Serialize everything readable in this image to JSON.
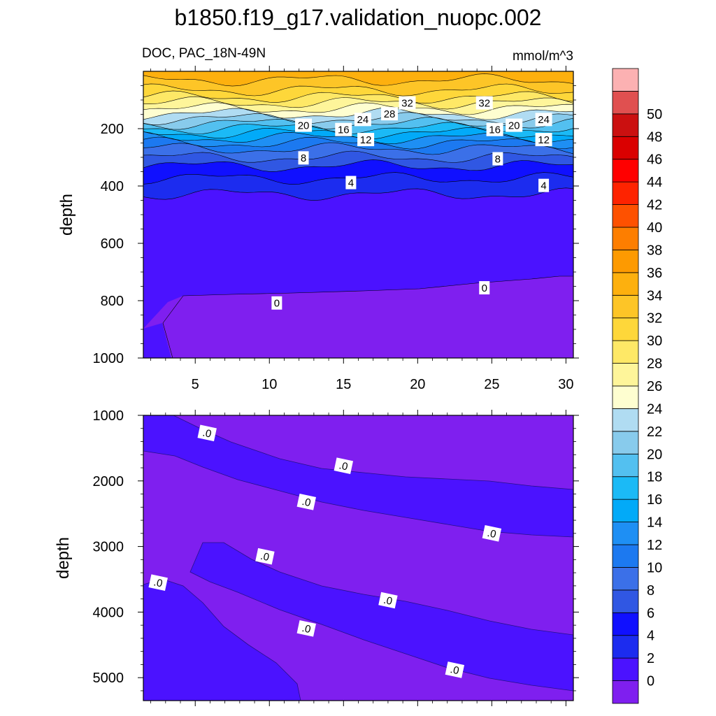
{
  "title": "b1850.f19_g17.validation_nuopc.002",
  "subtitle_left": "DOC, PAC_18N-49N",
  "subtitle_right": "mmol/m^3",
  "chart_data": [
    {
      "type": "contour",
      "panel": "upper",
      "ylabel": "depth",
      "xlabel": "",
      "xlim": [
        1.5,
        30.5
      ],
      "ylim": [
        1000,
        0
      ],
      "x_ticks": [
        5,
        10,
        15,
        20,
        25,
        30
      ],
      "y_ticks": [
        200,
        400,
        600,
        800,
        1000
      ],
      "contour_levels": [
        0,
        2,
        4,
        6,
        8,
        10,
        12,
        14,
        16,
        18,
        20,
        22,
        24,
        26,
        28,
        30,
        32,
        34
      ],
      "depth_profile": {
        "depth": [
          0,
          30,
          50,
          80,
          110,
          140,
          165,
          190,
          215,
          240,
          270,
          300,
          330,
          360,
          400,
          440,
          500,
          650,
          760,
          800,
          1000
        ],
        "value": [
          35,
          34,
          33,
          31,
          28,
          25,
          22,
          19,
          16,
          13,
          10,
          8,
          6,
          4.5,
          3,
          1.6,
          0.6,
          0.2,
          0.05,
          -0.05,
          -0.1
        ]
      },
      "contour_labels": [
        {
          "text": "32",
          "x": 19.3,
          "y": 110
        },
        {
          "text": "32",
          "x": 24.5,
          "y": 110
        },
        {
          "text": "28",
          "x": 18.1,
          "y": 148
        },
        {
          "text": "24",
          "x": 16.3,
          "y": 168
        },
        {
          "text": "24",
          "x": 28.5,
          "y": 168
        },
        {
          "text": "20",
          "x": 12.3,
          "y": 188
        },
        {
          "text": "20",
          "x": 26.5,
          "y": 188
        },
        {
          "text": "16",
          "x": 15.0,
          "y": 203
        },
        {
          "text": "16",
          "x": 25.2,
          "y": 203
        },
        {
          "text": "12",
          "x": 16.5,
          "y": 238
        },
        {
          "text": "12",
          "x": 28.5,
          "y": 238
        },
        {
          "text": "8",
          "x": 12.3,
          "y": 302
        },
        {
          "text": "8",
          "x": 25.4,
          "y": 305
        },
        {
          "text": "4",
          "x": 15.5,
          "y": 388
        },
        {
          "text": "4",
          "x": 28.5,
          "y": 398
        },
        {
          "text": "0",
          "x": 10.5,
          "y": 808
        },
        {
          "text": "0",
          "x": 24.5,
          "y": 755
        }
      ]
    },
    {
      "type": "contour",
      "panel": "lower",
      "ylabel": "depth",
      "xlabel": "",
      "xlim": [
        1.5,
        30.5
      ],
      "ylim": [
        5350,
        1000
      ],
      "y_ticks": [
        1000,
        2000,
        3000,
        4000,
        5000
      ],
      "field_range": [
        -0.05,
        0.05
      ],
      "bands": [
        {
          "level": "-0.02",
          "region": "upper-left to right band"
        },
        {
          "level": "-0.02",
          "region": "middle diagonal band"
        },
        {
          "level": "-0.02",
          "region": "bottom-left wedge"
        }
      ],
      "contour_labels": [
        {
          "text": ".0",
          "x": 5.8,
          "y": 1270
        },
        {
          "text": ".0",
          "x": 15.0,
          "y": 1770
        },
        {
          "text": ".0",
          "x": 12.5,
          "y": 2320
        },
        {
          "text": ".0",
          "x": 25.0,
          "y": 2800
        },
        {
          "text": ".0",
          "x": 9.7,
          "y": 3150
        },
        {
          "text": ".0",
          "x": 2.5,
          "y": 3550
        },
        {
          "text": ".0",
          "x": 18.0,
          "y": 3820
        },
        {
          "text": ".0",
          "x": 12.5,
          "y": 4250
        },
        {
          "text": ".0",
          "x": 22.5,
          "y": 4880
        }
      ]
    }
  ],
  "colorbar": {
    "labels": [
      "50",
      "48",
      "46",
      "44",
      "42",
      "40",
      "38",
      "36",
      "34",
      "32",
      "30",
      "28",
      "26",
      "24",
      "22",
      "20",
      "18",
      "16",
      "14",
      "12",
      "10",
      "8",
      "6",
      "4",
      "2",
      "0"
    ],
    "colors": [
      "#7f1fef",
      "#4b12ff",
      "#1c2cef",
      "#1010ff",
      "#3057e3",
      "#3b70e8",
      "#1c79f0",
      "#1e8ff4",
      "#02aaf8",
      "#1bbaf6",
      "#53c0f0",
      "#88cbec",
      "#b0dcf2",
      "#fefed0",
      "#fef59a",
      "#fee866",
      "#fed73a",
      "#fdc527",
      "#fdb00e",
      "#fd9a01",
      "#fd7e00",
      "#fe5100",
      "#fe2300",
      "#ff0000",
      "#da0000",
      "#cb1010",
      "#e05050",
      "#fcb1b2"
    ]
  }
}
